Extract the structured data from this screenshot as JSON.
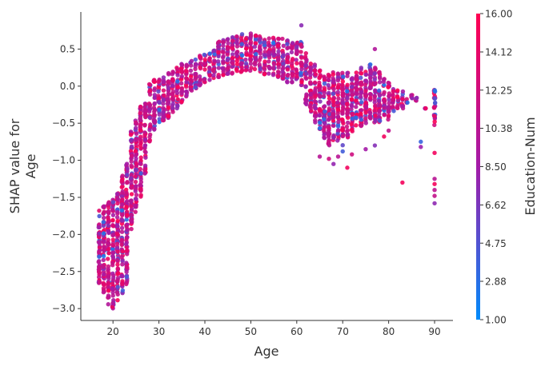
{
  "chart_data": {
    "type": "scatter",
    "xlabel": "Age",
    "ylabel": [
      "SHAP value for",
      "Age"
    ],
    "xlim": [
      13,
      94
    ],
    "ylim": [
      -3.16,
      1.0
    ],
    "xticks": [
      "20",
      "30",
      "40",
      "50",
      "60",
      "70",
      "80",
      "90"
    ],
    "xtick_values": [
      20,
      30,
      40,
      50,
      60,
      70,
      80,
      90
    ],
    "yticks": [
      "0.5",
      "0.0",
      "−0.5",
      "−1.0",
      "−1.5",
      "−2.0",
      "−2.5",
      "−3.0"
    ],
    "ytick_values": [
      0.5,
      0.0,
      -0.5,
      -1.0,
      -1.5,
      -2.0,
      -2.5,
      -3.0
    ],
    "grid": false,
    "colorbar": {
      "label": "Education-Num",
      "range": [
        1.0,
        16.0
      ],
      "ticks": [
        "16.00",
        "14.12",
        "12.25",
        "10.38",
        "8.50",
        "6.62",
        "4.75",
        "2.88",
        "1.00"
      ],
      "tick_values": [
        16.0,
        14.12,
        12.25,
        10.38,
        8.5,
        6.62,
        4.75,
        2.88,
        1.0
      ],
      "color_low": "#008bfb",
      "color_mid": "#a31ba8",
      "color_high": "#ff0052"
    },
    "age_bands": [
      [
        17,
        -2.75,
        -1.65
      ],
      [
        18,
        -2.8,
        -1.6
      ],
      [
        19,
        -2.95,
        -1.55
      ],
      [
        20,
        -3.0,
        -1.5
      ],
      [
        21,
        -2.9,
        -1.4
      ],
      [
        22,
        -2.85,
        -1.2
      ],
      [
        23,
        -2.7,
        -1.0
      ],
      [
        24,
        -1.95,
        -0.6
      ],
      [
        25,
        -1.7,
        -0.45
      ],
      [
        26,
        -1.5,
        -0.25
      ],
      [
        27,
        -1.2,
        -0.2
      ],
      [
        28,
        -0.75,
        0.05
      ],
      [
        29,
        -0.6,
        0.1
      ],
      [
        30,
        -0.5,
        0.12
      ],
      [
        31,
        -0.5,
        0.15
      ],
      [
        32,
        -0.45,
        0.2
      ],
      [
        33,
        -0.35,
        0.22
      ],
      [
        34,
        -0.3,
        0.25
      ],
      [
        35,
        -0.25,
        0.3
      ],
      [
        36,
        -0.15,
        0.32
      ],
      [
        37,
        -0.1,
        0.35
      ],
      [
        38,
        -0.05,
        0.38
      ],
      [
        39,
        0.0,
        0.42
      ],
      [
        40,
        0.05,
        0.45
      ],
      [
        41,
        0.08,
        0.5
      ],
      [
        42,
        0.1,
        0.55
      ],
      [
        43,
        0.12,
        0.6
      ],
      [
        44,
        0.15,
        0.62
      ],
      [
        45,
        0.15,
        0.65
      ],
      [
        46,
        0.15,
        0.68
      ],
      [
        47,
        0.18,
        0.7
      ],
      [
        48,
        0.18,
        0.72
      ],
      [
        49,
        0.2,
        0.7
      ],
      [
        50,
        0.2,
        0.72
      ],
      [
        51,
        0.2,
        0.7
      ],
      [
        52,
        0.18,
        0.7
      ],
      [
        53,
        0.15,
        0.68
      ],
      [
        54,
        0.15,
        0.68
      ],
      [
        55,
        0.15,
        0.66
      ],
      [
        56,
        0.1,
        0.65
      ],
      [
        57,
        0.1,
        0.65
      ],
      [
        58,
        0.05,
        0.62
      ],
      [
        59,
        0.05,
        0.62
      ],
      [
        60,
        0.05,
        0.6
      ],
      [
        61,
        0.0,
        0.6
      ],
      [
        62,
        -0.25,
        0.45
      ],
      [
        63,
        -0.35,
        0.35
      ],
      [
        64,
        -0.5,
        0.3
      ],
      [
        65,
        -0.6,
        0.22
      ],
      [
        66,
        -0.7,
        0.2
      ],
      [
        67,
        -0.8,
        0.18
      ],
      [
        68,
        -0.8,
        0.2
      ],
      [
        69,
        -0.75,
        0.18
      ],
      [
        70,
        -0.8,
        0.2
      ],
      [
        71,
        -0.7,
        0.18
      ],
      [
        72,
        -0.65,
        0.15
      ],
      [
        73,
        -0.6,
        0.2
      ],
      [
        74,
        -0.55,
        0.25
      ],
      [
        75,
        -0.5,
        0.25
      ],
      [
        76,
        -0.45,
        0.3
      ],
      [
        77,
        -0.5,
        0.25
      ],
      [
        78,
        -0.5,
        0.2
      ],
      [
        79,
        -0.4,
        0.1
      ],
      [
        80,
        -0.45,
        0.05
      ],
      [
        81,
        -0.35,
        0.0
      ],
      [
        82,
        -0.3,
        -0.05
      ],
      [
        83,
        -0.3,
        -0.05
      ],
      [
        84,
        -0.25,
        -0.15
      ],
      [
        85,
        -0.2,
        -0.1
      ],
      [
        86,
        -0.2,
        -0.15
      ],
      [
        88,
        -0.3,
        -0.3
      ],
      [
        90,
        -0.6,
        -0.05
      ]
    ],
    "outliers": [
      [
        65,
        -0.95
      ],
      [
        67,
        -0.98
      ],
      [
        68,
        -1.05
      ],
      [
        69,
        -0.95
      ],
      [
        70,
        -0.88
      ],
      [
        71,
        -1.1
      ],
      [
        72,
        -0.92
      ],
      [
        75,
        -0.85
      ],
      [
        77,
        -0.8
      ],
      [
        79,
        -0.68
      ],
      [
        80,
        -0.6
      ],
      [
        87,
        -0.75
      ],
      [
        87,
        -0.82
      ],
      [
        77,
        0.5
      ],
      [
        90,
        -1.25
      ],
      [
        90,
        -1.32
      ],
      [
        90,
        -1.4
      ],
      [
        90,
        -1.48
      ],
      [
        90,
        -1.58
      ],
      [
        90,
        -0.9
      ],
      [
        83,
        -1.3
      ],
      [
        61,
        0.82
      ]
    ]
  }
}
